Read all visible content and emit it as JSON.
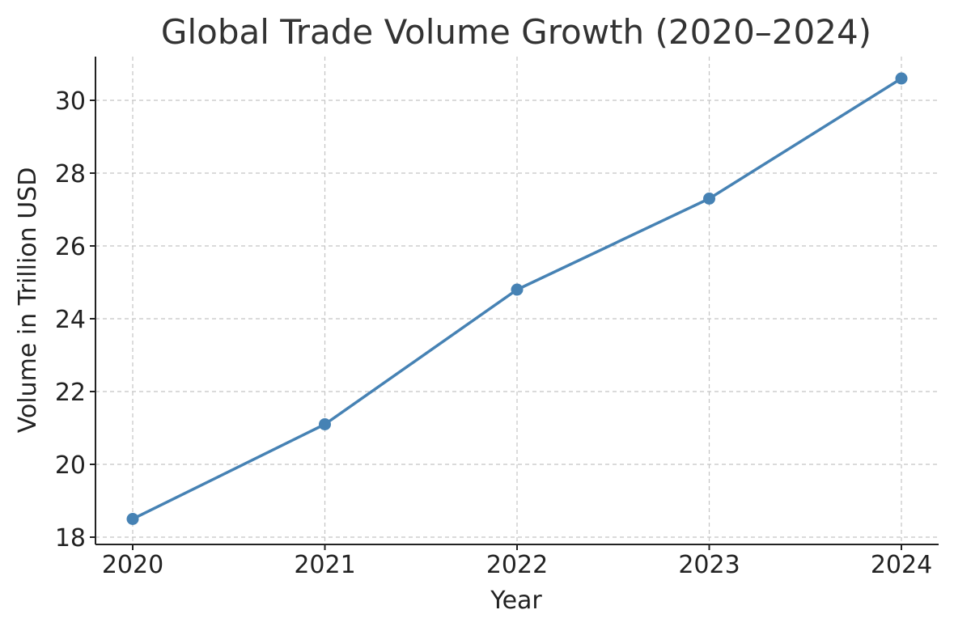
{
  "chart_data": {
    "type": "line",
    "title": "Global Trade Volume Growth (2020–2024)",
    "xlabel": "Year",
    "ylabel": "Volume in Trillion USD",
    "x": [
      2020,
      2021,
      2022,
      2023,
      2024
    ],
    "x_tick_labels": [
      "2020",
      "2021",
      "2022",
      "2023",
      "2024"
    ],
    "series": [
      {
        "values": [
          18.5,
          21.1,
          24.8,
          27.3,
          30.6
        ],
        "color": "#4682b4",
        "marker": "circle"
      }
    ],
    "y_ticks": [
      18,
      20,
      22,
      24,
      26,
      28,
      30
    ],
    "y_tick_labels": [
      "18",
      "20",
      "22",
      "24",
      "26",
      "28",
      "30"
    ],
    "ylim": [
      17.8,
      31.2
    ],
    "grid": true,
    "grid_style": "dashed",
    "legend": "none"
  }
}
